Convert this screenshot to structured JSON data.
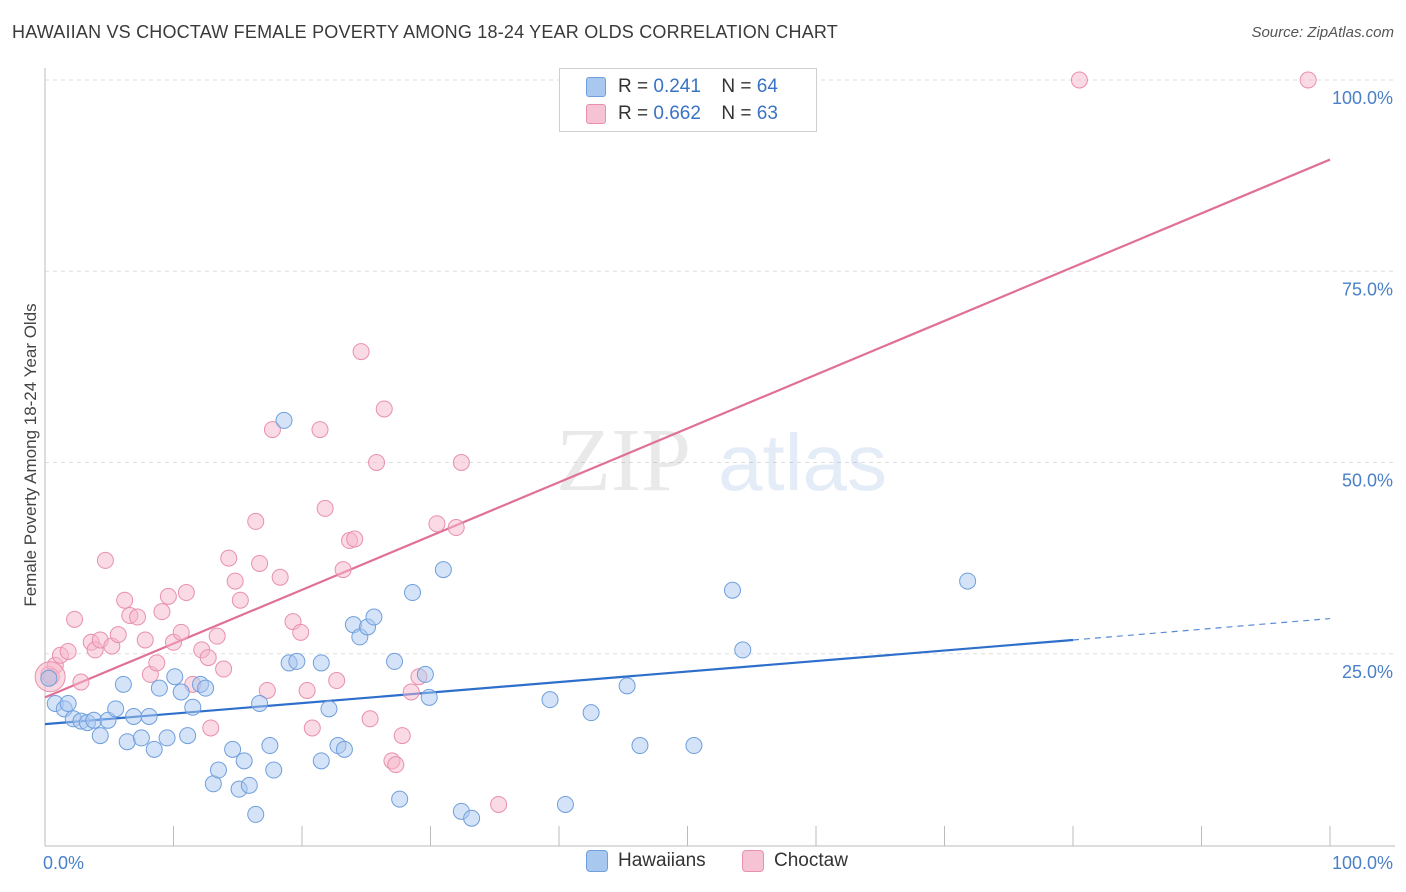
{
  "title": "HAWAIIAN VS CHOCTAW FEMALE POVERTY AMONG 18-24 YEAR OLDS CORRELATION CHART",
  "source": "Source: ZipAtlas.com",
  "legend": {
    "series1": {
      "r_label": "R =",
      "r_value": "0.241",
      "n_label": "N =",
      "n_value": "64"
    },
    "series2": {
      "r_label": "R =",
      "r_value": "0.662",
      "n_label": "N =",
      "n_value": "63"
    }
  },
  "bottom_legend": {
    "series1": "Hawaiians",
    "series2": "Choctaw"
  },
  "colors": {
    "hawaiians_fill": "#a9c8f0",
    "hawaiians_stroke": "#6f9fdc",
    "hawaiians_line": "#2f6fcc",
    "choctaw_fill": "#f5b6c9",
    "choctaw_stroke": "#e890ad",
    "choctaw_line": "#e07095",
    "tick_label": "#4a80c8",
    "grid": "#dedede"
  },
  "chart_data": {
    "type": "scatter",
    "title": "HAWAIIAN VS CHOCTAW FEMALE POVERTY AMONG 18-24 YEAR OLDS CORRELATION CHART",
    "xlabel": "",
    "ylabel": "Female Poverty Among 18-24 Year Olds",
    "xlim": [
      0,
      100
    ],
    "ylim": [
      0,
      102
    ],
    "x_tick_labels": [
      "0.0%",
      "100.0%"
    ],
    "y_ticks": [
      25,
      50,
      75,
      100
    ],
    "y_tick_labels": [
      "25.0%",
      "50.0%",
      "75.0%",
      "100.0%"
    ],
    "grid": true,
    "legend_position": "top-center",
    "series": [
      {
        "name": "Hawaiians",
        "r": 0.241,
        "n": 64,
        "trend": {
          "x0": 0,
          "y0": 15.8,
          "x1": 80,
          "y1": 26.8,
          "dashed_to_x": 100,
          "dashed_to_y": 29.6
        },
        "points": [
          [
            0.3,
            21.8
          ],
          [
            0.8,
            18.5
          ],
          [
            1.5,
            17.8
          ],
          [
            1.8,
            18.5
          ],
          [
            2.2,
            16.5
          ],
          [
            2.8,
            16.2
          ],
          [
            3.3,
            16
          ],
          [
            3.8,
            16.3
          ],
          [
            4.3,
            14.3
          ],
          [
            4.9,
            16.3
          ],
          [
            5.5,
            17.8
          ],
          [
            6.1,
            21
          ],
          [
            6.4,
            13.5
          ],
          [
            6.9,
            16.8
          ],
          [
            7.5,
            14
          ],
          [
            8.1,
            16.8
          ],
          [
            8.5,
            12.5
          ],
          [
            8.9,
            20.5
          ],
          [
            9.5,
            14
          ],
          [
            10.1,
            22
          ],
          [
            10.6,
            20
          ],
          [
            11.1,
            14.3
          ],
          [
            11.5,
            18
          ],
          [
            12.1,
            21
          ],
          [
            12.5,
            20.5
          ],
          [
            13.1,
            8
          ],
          [
            13.5,
            9.8
          ],
          [
            14.6,
            12.5
          ],
          [
            15.1,
            7.3
          ],
          [
            15.5,
            11
          ],
          [
            15.9,
            7.8
          ],
          [
            16.4,
            4
          ],
          [
            16.7,
            18.5
          ],
          [
            17.5,
            13
          ],
          [
            17.8,
            9.8
          ],
          [
            18.6,
            55.5
          ],
          [
            19,
            23.8
          ],
          [
            19.6,
            24
          ],
          [
            21.5,
            23.8
          ],
          [
            21.5,
            11
          ],
          [
            22.1,
            17.8
          ],
          [
            22.8,
            13
          ],
          [
            23.3,
            12.5
          ],
          [
            24,
            28.8
          ],
          [
            24.5,
            27.2
          ],
          [
            25.1,
            28.5
          ],
          [
            25.6,
            29.8
          ],
          [
            27.2,
            24
          ],
          [
            27.6,
            6
          ],
          [
            28.6,
            33
          ],
          [
            29.6,
            22.3
          ],
          [
            29.9,
            19.3
          ],
          [
            31,
            36
          ],
          [
            32.4,
            4.4
          ],
          [
            33.2,
            3.5
          ],
          [
            39.3,
            19
          ],
          [
            40.5,
            5.3
          ],
          [
            42.5,
            17.3
          ],
          [
            45.3,
            20.8
          ],
          [
            46.3,
            13
          ],
          [
            50.5,
            13
          ],
          [
            53.5,
            33.3
          ],
          [
            54.3,
            25.5
          ],
          [
            71.8,
            34.5
          ]
        ]
      },
      {
        "name": "Choctaw",
        "r": 0.662,
        "n": 63,
        "trend": {
          "x0": 0,
          "y0": 19.3,
          "x1": 100,
          "y1": 89.6
        },
        "points": [
          [
            0.3,
            22.3
          ],
          [
            0.8,
            23.5
          ],
          [
            1.2,
            24.8
          ],
          [
            1.8,
            25.3
          ],
          [
            2.3,
            29.5
          ],
          [
            2.8,
            21.3
          ],
          [
            3.6,
            26.5
          ],
          [
            3.9,
            25.5
          ],
          [
            4.3,
            26.8
          ],
          [
            4.7,
            37.2
          ],
          [
            5.2,
            26
          ],
          [
            5.7,
            27.5
          ],
          [
            6.2,
            32
          ],
          [
            6.6,
            30
          ],
          [
            7.2,
            29.8
          ],
          [
            7.8,
            26.8
          ],
          [
            8.2,
            22.3
          ],
          [
            8.7,
            23.8
          ],
          [
            9.1,
            30.5
          ],
          [
            9.6,
            32.5
          ],
          [
            10,
            26.5
          ],
          [
            10.6,
            27.8
          ],
          [
            11,
            33
          ],
          [
            11.5,
            21
          ],
          [
            12.2,
            25.5
          ],
          [
            12.7,
            24.5
          ],
          [
            12.9,
            15.3
          ],
          [
            13.4,
            27.3
          ],
          [
            13.9,
            23
          ],
          [
            14.3,
            37.5
          ],
          [
            14.8,
            34.5
          ],
          [
            15.2,
            32
          ],
          [
            16.4,
            42.3
          ],
          [
            16.7,
            36.8
          ],
          [
            17.3,
            20.2
          ],
          [
            17.7,
            54.3
          ],
          [
            18.3,
            35
          ],
          [
            19.3,
            29.2
          ],
          [
            19.9,
            27.8
          ],
          [
            20.4,
            20.2
          ],
          [
            20.8,
            15.3
          ],
          [
            21.4,
            54.3
          ],
          [
            21.8,
            44
          ],
          [
            22.7,
            21.5
          ],
          [
            23.2,
            36
          ],
          [
            23.7,
            39.8
          ],
          [
            24.1,
            40
          ],
          [
            24.6,
            64.5
          ],
          [
            25.3,
            16.5
          ],
          [
            25.8,
            50
          ],
          [
            26.4,
            57
          ],
          [
            27,
            11
          ],
          [
            27.3,
            10.5
          ],
          [
            27.8,
            14.3
          ],
          [
            28.5,
            20
          ],
          [
            29.1,
            22
          ],
          [
            30.5,
            42
          ],
          [
            32,
            41.5
          ],
          [
            32.4,
            50
          ],
          [
            35.3,
            5.3
          ],
          [
            80.5,
            100
          ],
          [
            98.3,
            100
          ],
          [
            0.5,
            22
          ]
        ]
      }
    ]
  },
  "watermark": {
    "part1": "ZIP",
    "part2": "atlas"
  }
}
